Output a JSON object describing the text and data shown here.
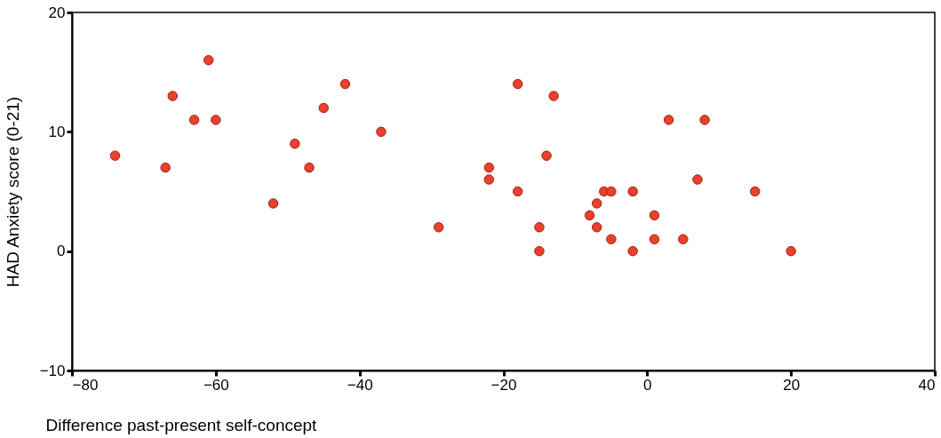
{
  "chart_data": {
    "type": "scatter",
    "xlabel": "Difference past-present self-concept",
    "ylabel": "HAD Anxiety score (0-21)",
    "xlim": [
      -80,
      40
    ],
    "xticks": [
      -80,
      -60,
      -40,
      -20,
      0,
      20,
      40
    ],
    "ylim": [
      -10,
      20
    ],
    "yticks": [
      -10,
      0,
      10,
      20
    ],
    "grid": false,
    "marker": "circle",
    "series": [
      {
        "color": "#e8412c",
        "x": [
          -74,
          -67,
          -66,
          -61,
          -63,
          -60,
          -52,
          -49,
          -47,
          -45,
          -42,
          -37,
          -29,
          -22,
          -22,
          -18,
          -18,
          -13,
          -14,
          -15,
          -15,
          -8,
          -7,
          -7,
          -6,
          -5,
          -5,
          -2,
          -2,
          1,
          1,
          3,
          5,
          7,
          8,
          15,
          20
        ],
        "values": [
          8,
          7,
          13,
          16,
          11,
          11,
          4,
          9,
          7,
          12,
          14,
          10,
          2,
          7,
          6,
          14,
          5,
          13,
          8,
          2,
          0,
          3,
          4,
          2,
          5,
          5,
          1,
          5,
          0,
          3,
          1,
          11,
          1,
          6,
          11,
          5,
          0
        ]
      }
    ]
  }
}
